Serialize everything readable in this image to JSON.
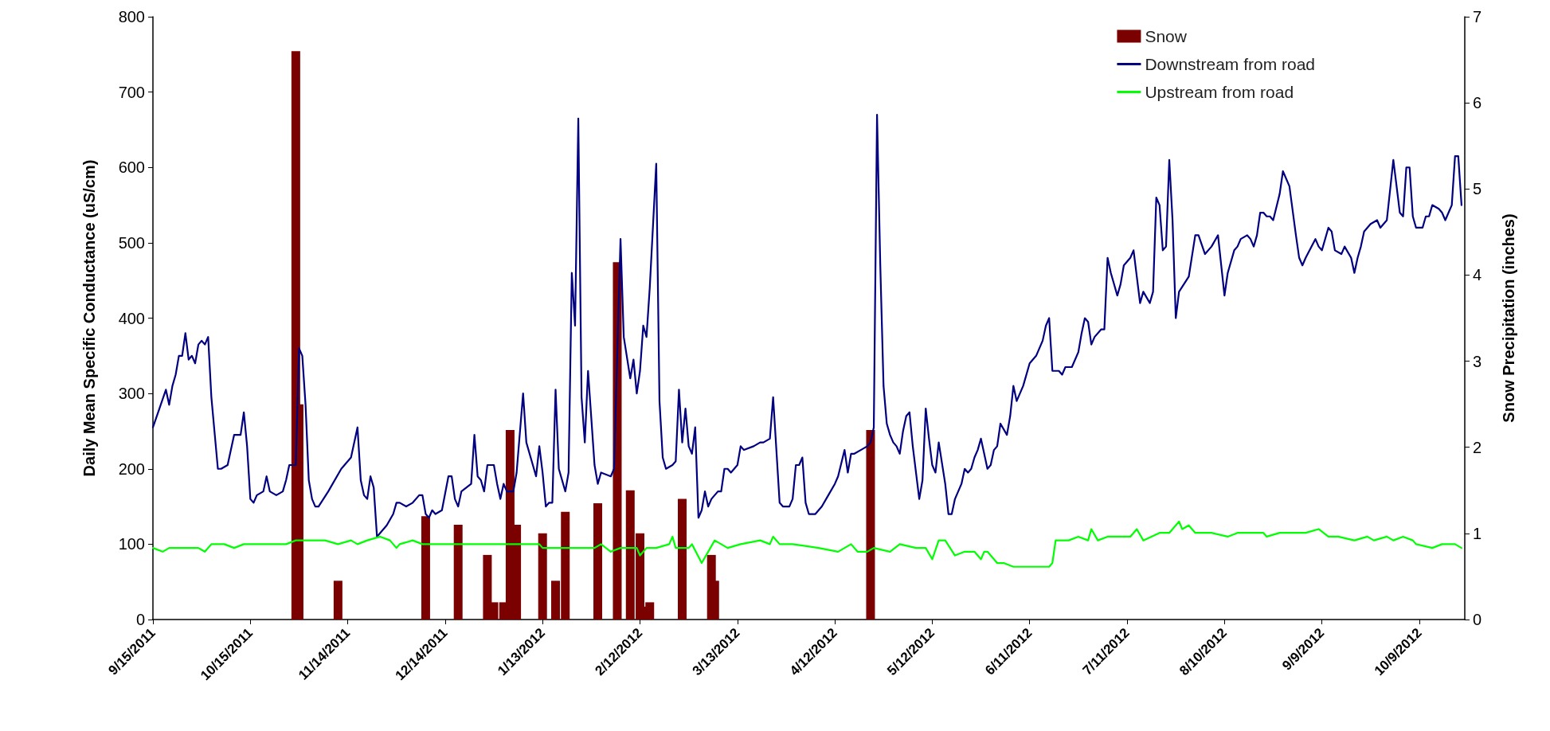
{
  "chart_data": {
    "type": "line",
    "ylabel": "Daily Mean Specific Conductance (uS/cm)",
    "y2label": "Snow Precipitation (inches)",
    "xlim": [
      "2011-09-15",
      "2012-10-23"
    ],
    "xticks": [
      {
        "value": "2011-09-15",
        "label": "9/15/2011"
      },
      {
        "value": "2011-10-15",
        "label": "10/15/2011"
      },
      {
        "value": "2011-11-14",
        "label": "11/14/2011"
      },
      {
        "value": "2011-12-14",
        "label": "12/14/2011"
      },
      {
        "value": "2012-01-13",
        "label": "1/13/2012"
      },
      {
        "value": "2012-02-12",
        "label": "2/12/2012"
      },
      {
        "value": "2012-03-13",
        "label": "3/13/2012"
      },
      {
        "value": "2012-04-12",
        "label": "4/12/2012"
      },
      {
        "value": "2012-05-12",
        "label": "5/12/2012"
      },
      {
        "value": "2012-06-11",
        "label": "6/11/2012"
      },
      {
        "value": "2012-07-11",
        "label": "7/11/2012"
      },
      {
        "value": "2012-08-10",
        "label": "8/10/2012"
      },
      {
        "value": "2012-09-09",
        "label": "9/9/2012"
      },
      {
        "value": "2012-10-09",
        "label": "10/9/2012"
      }
    ],
    "ylim": [
      0,
      800
    ],
    "yticks": [
      0,
      100,
      200,
      300,
      400,
      500,
      600,
      700,
      800
    ],
    "y2lim": [
      0,
      7
    ],
    "y2ticks": [
      0,
      1,
      2,
      3,
      4,
      5,
      6,
      7
    ],
    "grid": false,
    "legend": "top right",
    "marker": "none",
    "series": [
      {
        "name": "Snow",
        "type": "bar",
        "axis": "y2",
        "color": "#7b0000",
        "x": [
          "2011-10-29",
          "2011-10-30",
          "2011-11-11",
          "2011-12-08",
          "2011-12-18",
          "2011-12-27",
          "2011-12-29",
          "2012-01-01",
          "2012-01-03",
          "2012-01-05",
          "2012-01-13",
          "2012-01-17",
          "2012-01-20",
          "2012-01-30",
          "2012-02-05",
          "2012-02-09",
          "2012-02-12",
          "2012-02-13",
          "2012-02-15",
          "2012-02-25",
          "2012-03-05",
          "2012-03-06",
          "2012-04-23"
        ],
        "values": [
          6.6,
          2.5,
          0.45,
          1.2,
          1.1,
          0.75,
          0.2,
          0.2,
          2.2,
          1.1,
          1.0,
          0.45,
          1.25,
          1.35,
          4.15,
          1.5,
          1.0,
          0.15,
          0.2,
          1.4,
          0.75,
          0.45,
          2.2
        ]
      },
      {
        "name": "Downstream from road",
        "color": "#000080",
        "x": [
          "2011-09-15",
          "2011-09-17",
          "2011-09-19",
          "2011-09-20",
          "2011-09-21",
          "2011-09-22",
          "2011-09-23",
          "2011-09-24",
          "2011-09-25",
          "2011-09-26",
          "2011-09-27",
          "2011-09-28",
          "2011-09-29",
          "2011-09-30",
          "2011-10-01",
          "2011-10-02",
          "2011-10-03",
          "2011-10-05",
          "2011-10-06",
          "2011-10-08",
          "2011-10-10",
          "2011-10-12",
          "2011-10-13",
          "2011-10-14",
          "2011-10-15",
          "2011-10-16",
          "2011-10-17",
          "2011-10-19",
          "2011-10-20",
          "2011-10-21",
          "2011-10-23",
          "2011-10-25",
          "2011-10-26",
          "2011-10-27",
          "2011-10-29",
          "2011-10-30",
          "2011-10-31",
          "2011-11-01",
          "2011-11-02",
          "2011-11-03",
          "2011-11-04",
          "2011-11-05",
          "2011-11-08",
          "2011-11-12",
          "2011-11-15",
          "2011-11-17",
          "2011-11-18",
          "2011-11-19",
          "2011-11-20",
          "2011-11-21",
          "2011-11-22",
          "2011-11-23",
          "2011-11-26",
          "2011-11-28",
          "2011-11-29",
          "2011-11-30",
          "2011-12-02",
          "2011-12-04",
          "2011-12-06",
          "2011-12-07",
          "2011-12-08",
          "2011-12-09",
          "2011-12-10",
          "2011-12-11",
          "2011-12-13",
          "2011-12-15",
          "2011-12-16",
          "2011-12-17",
          "2011-12-18",
          "2011-12-19",
          "2011-12-22",
          "2011-12-23",
          "2011-12-24",
          "2011-12-25",
          "2011-12-26",
          "2011-12-27",
          "2011-12-29",
          "2011-12-30",
          "2011-12-31",
          "2012-01-01",
          "2012-01-02",
          "2012-01-04",
          "2012-01-05",
          "2012-01-07",
          "2012-01-08",
          "2012-01-10",
          "2012-01-11",
          "2012-01-12",
          "2012-01-13",
          "2012-01-14",
          "2012-01-15",
          "2012-01-16",
          "2012-01-17",
          "2012-01-18",
          "2012-01-20",
          "2012-01-21",
          "2012-01-22",
          "2012-01-23",
          "2012-01-24",
          "2012-01-25",
          "2012-01-26",
          "2012-01-27",
          "2012-01-29",
          "2012-01-30",
          "2012-01-31",
          "2012-02-03",
          "2012-02-04",
          "2012-02-06",
          "2012-02-07",
          "2012-02-09",
          "2012-02-10",
          "2012-02-11",
          "2012-02-12",
          "2012-02-13",
          "2012-02-14",
          "2012-02-15",
          "2012-02-17",
          "2012-02-18",
          "2012-02-19",
          "2012-02-20",
          "2012-02-22",
          "2012-02-23",
          "2012-02-24",
          "2012-02-25",
          "2012-02-26",
          "2012-02-27",
          "2012-02-28",
          "2012-02-29",
          "2012-03-01",
          "2012-03-02",
          "2012-03-03",
          "2012-03-04",
          "2012-03-05",
          "2012-03-07",
          "2012-03-08",
          "2012-03-09",
          "2012-03-10",
          "2012-03-11",
          "2012-03-13",
          "2012-03-14",
          "2012-03-15",
          "2012-03-18",
          "2012-03-20",
          "2012-03-21",
          "2012-03-23",
          "2012-03-24",
          "2012-03-26",
          "2012-03-27",
          "2012-03-29",
          "2012-03-30",
          "2012-03-31",
          "2012-04-01",
          "2012-04-02",
          "2012-04-03",
          "2012-04-04",
          "2012-04-06",
          "2012-04-07",
          "2012-04-08",
          "2012-04-10",
          "2012-04-12",
          "2012-04-13",
          "2012-04-15",
          "2012-04-16",
          "2012-04-17",
          "2012-04-18",
          "2012-04-20",
          "2012-04-22",
          "2012-04-23",
          "2012-04-24",
          "2012-04-25",
          "2012-04-26",
          "2012-04-27",
          "2012-04-28",
          "2012-04-29",
          "2012-04-30",
          "2012-05-01",
          "2012-05-02",
          "2012-05-03",
          "2012-05-04",
          "2012-05-05",
          "2012-05-06",
          "2012-05-08",
          "2012-05-09",
          "2012-05-10",
          "2012-05-11",
          "2012-05-12",
          "2012-05-13",
          "2012-05-14",
          "2012-05-16",
          "2012-05-17",
          "2012-05-18",
          "2012-05-19",
          "2012-05-21",
          "2012-05-22",
          "2012-05-23",
          "2012-05-24",
          "2012-05-25",
          "2012-05-26",
          "2012-05-27",
          "2012-05-28",
          "2012-05-29",
          "2012-05-30",
          "2012-05-31",
          "2012-06-01",
          "2012-06-02",
          "2012-06-04",
          "2012-06-05",
          "2012-06-06",
          "2012-06-07",
          "2012-06-09",
          "2012-06-11",
          "2012-06-12",
          "2012-06-13",
          "2012-06-15",
          "2012-06-16",
          "2012-06-17",
          "2012-06-18",
          "2012-06-20",
          "2012-06-21",
          "2012-06-22",
          "2012-06-24",
          "2012-06-26",
          "2012-06-27",
          "2012-06-28",
          "2012-06-29",
          "2012-06-30",
          "2012-07-01",
          "2012-07-03",
          "2012-07-04",
          "2012-07-05",
          "2012-07-06",
          "2012-07-08",
          "2012-07-09",
          "2012-07-10",
          "2012-07-12",
          "2012-07-13",
          "2012-07-15",
          "2012-07-16",
          "2012-07-18",
          "2012-07-19",
          "2012-07-20",
          "2012-07-21",
          "2012-07-22",
          "2012-07-23",
          "2012-07-24",
          "2012-07-25",
          "2012-07-26",
          "2012-07-27",
          "2012-07-30",
          "2012-08-01",
          "2012-08-02",
          "2012-08-04",
          "2012-08-06",
          "2012-08-08",
          "2012-08-10",
          "2012-08-11",
          "2012-08-13",
          "2012-08-14",
          "2012-08-15",
          "2012-08-17",
          "2012-08-18",
          "2012-08-19",
          "2012-08-20",
          "2012-08-21",
          "2012-08-22",
          "2012-08-23",
          "2012-08-24",
          "2012-08-25",
          "2012-08-27",
          "2012-08-28",
          "2012-08-30",
          "2012-09-01",
          "2012-09-02",
          "2012-09-03",
          "2012-09-04",
          "2012-09-07",
          "2012-09-08",
          "2012-09-09",
          "2012-09-11",
          "2012-09-12",
          "2012-09-13",
          "2012-09-15",
          "2012-09-16",
          "2012-09-18",
          "2012-09-19",
          "2012-09-20",
          "2012-09-21",
          "2012-09-22",
          "2012-09-23",
          "2012-09-24",
          "2012-09-26",
          "2012-09-27",
          "2012-09-29",
          "2012-10-01",
          "2012-10-02",
          "2012-10-03",
          "2012-10-04",
          "2012-10-05",
          "2012-10-06",
          "2012-10-07",
          "2012-10-08",
          "2012-10-10",
          "2012-10-11",
          "2012-10-12",
          "2012-10-13",
          "2012-10-15",
          "2012-10-16",
          "2012-10-17",
          "2012-10-18",
          "2012-10-19",
          "2012-10-20",
          "2012-10-21",
          "2012-10-22"
        ],
        "values": [
          255,
          280,
          305,
          285,
          310,
          325,
          350,
          350,
          380,
          345,
          350,
          340,
          365,
          370,
          365,
          375,
          295,
          200,
          200,
          205,
          245,
          245,
          275,
          230,
          160,
          155,
          165,
          170,
          190,
          170,
          165,
          170,
          185,
          205,
          205,
          360,
          350,
          285,
          185,
          160,
          150,
          150,
          170,
          200,
          215,
          255,
          185,
          165,
          160,
          190,
          175,
          110,
          125,
          140,
          155,
          155,
          150,
          155,
          165,
          165,
          140,
          135,
          145,
          140,
          145,
          190,
          190,
          160,
          150,
          170,
          180,
          245,
          190,
          185,
          170,
          205,
          205,
          180,
          160,
          180,
          170,
          170,
          195,
          300,
          235,
          205,
          190,
          230,
          195,
          150,
          155,
          155,
          305,
          200,
          170,
          195,
          460,
          390,
          665,
          295,
          235,
          330,
          205,
          180,
          195,
          190,
          200,
          505,
          375,
          320,
          345,
          300,
          330,
          390,
          375,
          440,
          605,
          290,
          215,
          200,
          205,
          210,
          305,
          235,
          280,
          230,
          220,
          255,
          135,
          145,
          170,
          150,
          160,
          170,
          170,
          200,
          200,
          195,
          205,
          230,
          225,
          230,
          235,
          235,
          240,
          295,
          155,
          150,
          150,
          160,
          205,
          205,
          215,
          155,
          140,
          140,
          145,
          150,
          165,
          180,
          190,
          225,
          195,
          220,
          220,
          225,
          230,
          235,
          255,
          670,
          470,
          310,
          260,
          245,
          235,
          230,
          220,
          250,
          270,
          275,
          230,
          160,
          185,
          280,
          240,
          205,
          195,
          235,
          180,
          140,
          140,
          160,
          180,
          200,
          195,
          200,
          215,
          225,
          240,
          220,
          200,
          205,
          225,
          230,
          260,
          245,
          270,
          310,
          290,
          310,
          340,
          345,
          350,
          370,
          390,
          400,
          330,
          330,
          325,
          335,
          335,
          355,
          380,
          400,
          395,
          365,
          375,
          385,
          385,
          480,
          460,
          430,
          445,
          470,
          480,
          490,
          420,
          435,
          420,
          435,
          560,
          550,
          490,
          495,
          610,
          530,
          400,
          435,
          455,
          510,
          510,
          485,
          495,
          510,
          430,
          460,
          490,
          495,
          505,
          510,
          505,
          495,
          510,
          540,
          540,
          535,
          535,
          530,
          565,
          595,
          575,
          510,
          480,
          470,
          480,
          505,
          495,
          490,
          520,
          515,
          490,
          485,
          495,
          480,
          460,
          480,
          495,
          515,
          520,
          525,
          530,
          520,
          530,
          610,
          575,
          540,
          535,
          600,
          600,
          535,
          520,
          520,
          535,
          535,
          550,
          545,
          540,
          530,
          540,
          550,
          615,
          615,
          550
        ]
      },
      {
        "name": "Upstream from road",
        "color": "#00ff00",
        "x": [
          "2011-09-15",
          "2011-09-18",
          "2011-09-20",
          "2011-09-29",
          "2011-10-01",
          "2011-10-03",
          "2011-10-07",
          "2011-10-10",
          "2011-10-13",
          "2011-10-20",
          "2011-10-26",
          "2011-10-29",
          "2011-11-01",
          "2011-11-07",
          "2011-11-11",
          "2011-11-15",
          "2011-11-17",
          "2011-11-20",
          "2011-11-24",
          "2011-11-27",
          "2011-11-29",
          "2011-11-30",
          "2011-12-04",
          "2011-12-07",
          "2011-12-17",
          "2011-12-25",
          "2011-12-31",
          "2012-01-06",
          "2012-01-12",
          "2012-01-13",
          "2012-01-18",
          "2012-01-23",
          "2012-01-29",
          "2012-01-31",
          "2012-02-03",
          "2012-02-06",
          "2012-02-11",
          "2012-02-12",
          "2012-02-14",
          "2012-02-17",
          "2012-02-21",
          "2012-02-22",
          "2012-02-23",
          "2012-02-27",
          "2012-02-28",
          "2012-03-02",
          "2012-03-04",
          "2012-03-06",
          "2012-03-08",
          "2012-03-10",
          "2012-03-14",
          "2012-03-20",
          "2012-03-23",
          "2012-03-24",
          "2012-03-26",
          "2012-03-30",
          "2012-04-07",
          "2012-04-13",
          "2012-04-17",
          "2012-04-19",
          "2012-04-22",
          "2012-04-24",
          "2012-04-29",
          "2012-05-02",
          "2012-05-07",
          "2012-05-10",
          "2012-05-12",
          "2012-05-14",
          "2012-05-16",
          "2012-05-19",
          "2012-05-22",
          "2012-05-25",
          "2012-05-27",
          "2012-05-28",
          "2012-05-29",
          "2012-06-01",
          "2012-06-03",
          "2012-06-06",
          "2012-06-13",
          "2012-06-17",
          "2012-06-18",
          "2012-06-19",
          "2012-06-23",
          "2012-06-26",
          "2012-06-29",
          "2012-06-30",
          "2012-07-02",
          "2012-07-05",
          "2012-07-08",
          "2012-07-12",
          "2012-07-14",
          "2012-07-16",
          "2012-07-21",
          "2012-07-24",
          "2012-07-27",
          "2012-07-28",
          "2012-07-30",
          "2012-08-01",
          "2012-08-06",
          "2012-08-11",
          "2012-08-14",
          "2012-08-22",
          "2012-08-23",
          "2012-08-27",
          "2012-08-30",
          "2012-09-04",
          "2012-09-08",
          "2012-09-11",
          "2012-09-14",
          "2012-09-19",
          "2012-09-23",
          "2012-09-25",
          "2012-09-29",
          "2012-10-01",
          "2012-10-04",
          "2012-10-07",
          "2012-10-08",
          "2012-10-13",
          "2012-10-16",
          "2012-10-20",
          "2012-10-22"
        ],
        "values": [
          95,
          90,
          95,
          95,
          90,
          100,
          100,
          95,
          100,
          100,
          100,
          105,
          105,
          105,
          100,
          105,
          100,
          105,
          110,
          105,
          95,
          100,
          105,
          100,
          100,
          100,
          100,
          100,
          100,
          95,
          95,
          95,
          95,
          100,
          90,
          95,
          95,
          85,
          95,
          95,
          100,
          110,
          95,
          95,
          100,
          75,
          90,
          105,
          100,
          95,
          100,
          105,
          100,
          110,
          100,
          100,
          95,
          90,
          100,
          90,
          90,
          95,
          90,
          100,
          95,
          95,
          80,
          105,
          105,
          85,
          90,
          90,
          80,
          90,
          90,
          75,
          75,
          70,
          70,
          70,
          75,
          105,
          105,
          110,
          105,
          120,
          105,
          110,
          110,
          110,
          120,
          105,
          115,
          115,
          130,
          120,
          125,
          115,
          115,
          110,
          115,
          115,
          110,
          115,
          115,
          115,
          120,
          110,
          110,
          105,
          110,
          105,
          110,
          105,
          110,
          105,
          100,
          95,
          100,
          100,
          95
        ]
      }
    ]
  }
}
